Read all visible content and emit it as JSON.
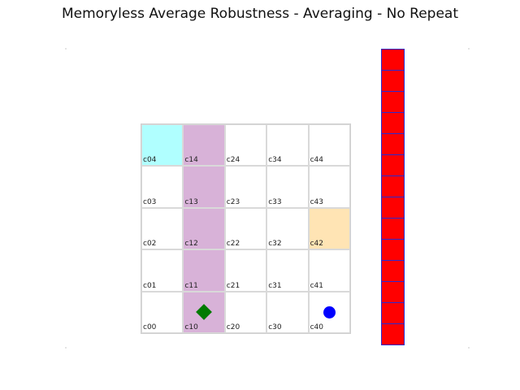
{
  "title": "Memoryless Average Robustness - Averaging - No Repeat",
  "grid": {
    "cols": 5,
    "rows": 5,
    "cells": [
      {
        "label": "c04",
        "col": 0,
        "row": 4,
        "color": "#b0ffff"
      },
      {
        "label": "c14",
        "col": 1,
        "row": 4,
        "color": "#d8b2d8"
      },
      {
        "label": "c24",
        "col": 2,
        "row": 4,
        "color": "#ffffff"
      },
      {
        "label": "c34",
        "col": 3,
        "row": 4,
        "color": "#ffffff"
      },
      {
        "label": "c44",
        "col": 4,
        "row": 4,
        "color": "#ffffff"
      },
      {
        "label": "c03",
        "col": 0,
        "row": 3,
        "color": "#ffffff"
      },
      {
        "label": "c13",
        "col": 1,
        "row": 3,
        "color": "#d8b2d8"
      },
      {
        "label": "c23",
        "col": 2,
        "row": 3,
        "color": "#ffffff"
      },
      {
        "label": "c33",
        "col": 3,
        "row": 3,
        "color": "#ffffff"
      },
      {
        "label": "c43",
        "col": 4,
        "row": 3,
        "color": "#ffffff"
      },
      {
        "label": "c02",
        "col": 0,
        "row": 2,
        "color": "#ffffff"
      },
      {
        "label": "c12",
        "col": 1,
        "row": 2,
        "color": "#d8b2d8"
      },
      {
        "label": "c22",
        "col": 2,
        "row": 2,
        "color": "#ffffff"
      },
      {
        "label": "c32",
        "col": 3,
        "row": 2,
        "color": "#ffffff"
      },
      {
        "label": "c42",
        "col": 4,
        "row": 2,
        "color": "#ffe4b4"
      },
      {
        "label": "c01",
        "col": 0,
        "row": 1,
        "color": "#ffffff"
      },
      {
        "label": "c11",
        "col": 1,
        "row": 1,
        "color": "#d8b2d8"
      },
      {
        "label": "c21",
        "col": 2,
        "row": 1,
        "color": "#ffffff"
      },
      {
        "label": "c31",
        "col": 3,
        "row": 1,
        "color": "#ffffff"
      },
      {
        "label": "c41",
        "col": 4,
        "row": 1,
        "color": "#ffffff"
      },
      {
        "label": "c00",
        "col": 0,
        "row": 0,
        "color": "#ffffff"
      },
      {
        "label": "c10",
        "col": 1,
        "row": 0,
        "color": "#d8b2d8"
      },
      {
        "label": "c20",
        "col": 2,
        "row": 0,
        "color": "#ffffff"
      },
      {
        "label": "c30",
        "col": 3,
        "row": 0,
        "color": "#ffffff"
      },
      {
        "label": "c40",
        "col": 4,
        "row": 0,
        "color": "#ffffff"
      }
    ],
    "markers": [
      {
        "name": "goal-diamond-icon",
        "shape": "diamond",
        "col": 1,
        "row": 0,
        "color": "#007a00"
      },
      {
        "name": "agent-dot-icon",
        "shape": "circle",
        "col": 4,
        "row": 0,
        "color": "#0000ff"
      }
    ]
  },
  "bar": {
    "segments": 14,
    "fill_color": "#ff0000",
    "border_color": "#2a2ad0"
  }
}
